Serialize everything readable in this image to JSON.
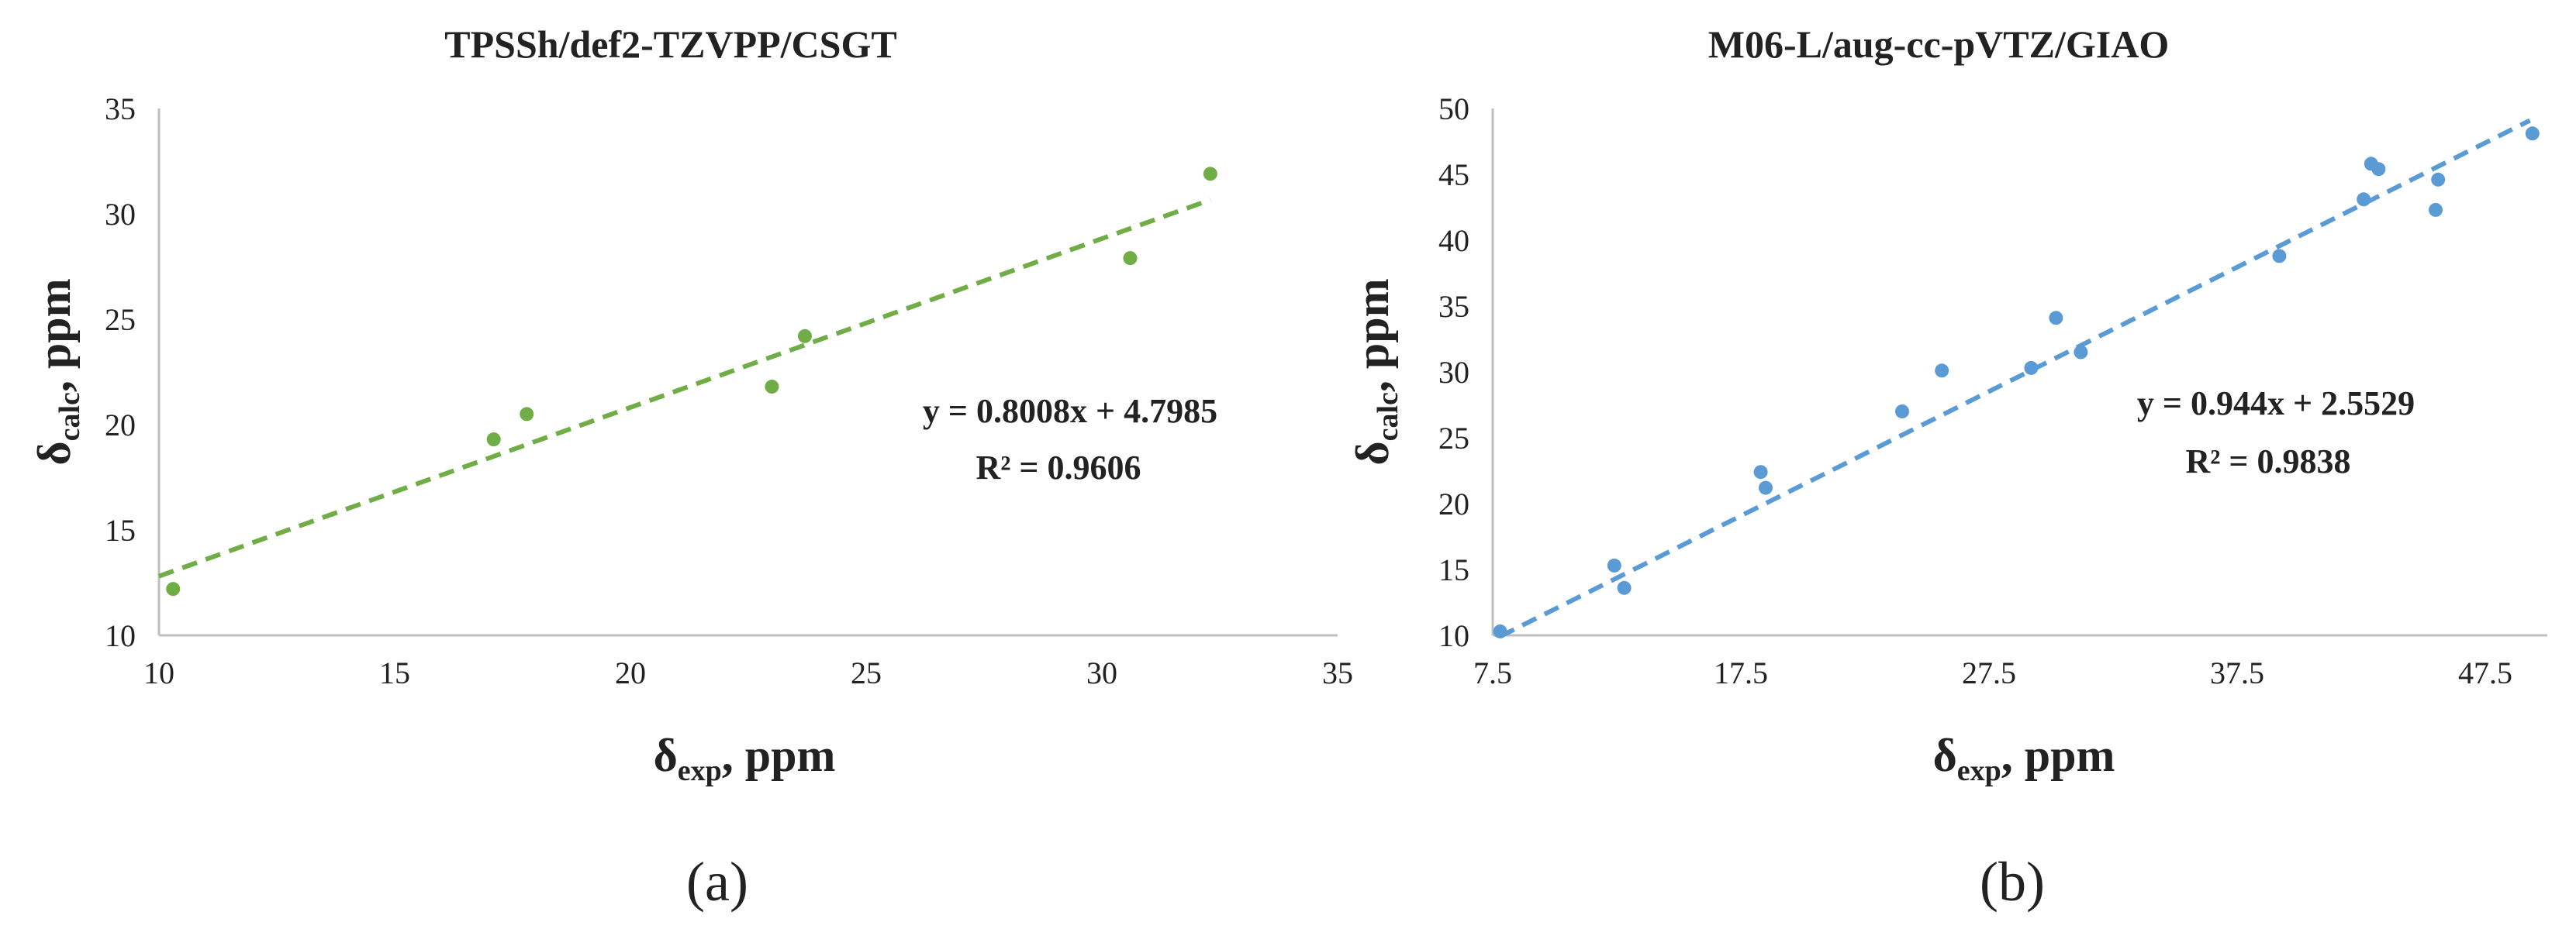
{
  "chart_data": [
    {
      "id": "a",
      "type": "scatter",
      "title": "TPSSh/def2-TZVPP/CSGT",
      "xlabel_main": "δ",
      "xlabel_sub": "exp",
      "xlabel_suffix": ", ppm",
      "ylabel_main": "δ",
      "ylabel_sub": "calc",
      "ylabel_suffix": ", ppm",
      "xlim": [
        10,
        35
      ],
      "ylim": [
        10,
        35
      ],
      "x_ticks": [
        10,
        15,
        20,
        25,
        30,
        35
      ],
      "y_ticks": [
        10,
        15,
        20,
        25,
        30,
        35
      ],
      "x_tick_labels": [
        "10",
        "15",
        "20",
        "25",
        "30",
        "35"
      ],
      "y_tick_labels": [
        "10",
        "15",
        "20",
        "25",
        "30",
        "35"
      ],
      "x": [
        10.3,
        17.1,
        17.8,
        23.0,
        23.7,
        30.6,
        32.3
      ],
      "y": [
        12.2,
        19.3,
        20.5,
        21.8,
        24.2,
        27.9,
        31.9
      ],
      "trendline": {
        "slope": 0.8008,
        "intercept": 4.7985,
        "x_range": [
          10.0,
          32.3
        ]
      },
      "equation": "y = 0.8008x + 4.7985",
      "r2": "R² = 0.9606",
      "color": "#70ad47",
      "caption": "(a)",
      "grid": false
    },
    {
      "id": "b",
      "type": "scatter",
      "title": "M06-L/aug-cc-pVTZ/GIAO",
      "xlabel_main": "δ",
      "xlabel_sub": "exp",
      "xlabel_suffix": ", ppm",
      "ylabel_main": "δ",
      "ylabel_sub": "calc",
      "ylabel_suffix": ", ppm",
      "xlim": [
        7.5,
        50
      ],
      "ylim": [
        10,
        50
      ],
      "x_ticks": [
        7.5,
        17.5,
        27.5,
        37.5,
        47.5
      ],
      "y_ticks": [
        10,
        15,
        20,
        25,
        30,
        35,
        40,
        45,
        50
      ],
      "x_tick_labels": [
        "7.5",
        "17.5",
        "27.5",
        "37.5",
        "47.5"
      ],
      "y_tick_labels": [
        "10",
        "15",
        "20",
        "25",
        "30",
        "35",
        "40",
        "45",
        "50"
      ],
      "x": [
        7.8,
        12.4,
        12.8,
        18.3,
        18.5,
        24.0,
        25.6,
        29.2,
        30.2,
        31.2,
        39.2,
        42.6,
        42.9,
        43.2,
        45.5,
        45.6,
        49.4
      ],
      "y": [
        10.3,
        15.3,
        13.6,
        22.4,
        21.2,
        27.0,
        30.1,
        30.3,
        34.1,
        31.5,
        38.8,
        43.1,
        45.8,
        45.4,
        42.3,
        44.6,
        48.1
      ],
      "trendline": {
        "slope": 0.944,
        "intercept": 2.5529,
        "x_range": [
          7.8,
          49.3
        ]
      },
      "equation": "y = 0.944x + 2.5529",
      "r2": "R² = 0.9838",
      "color": "#5b9bd5",
      "caption": "(b)",
      "grid": false
    }
  ]
}
